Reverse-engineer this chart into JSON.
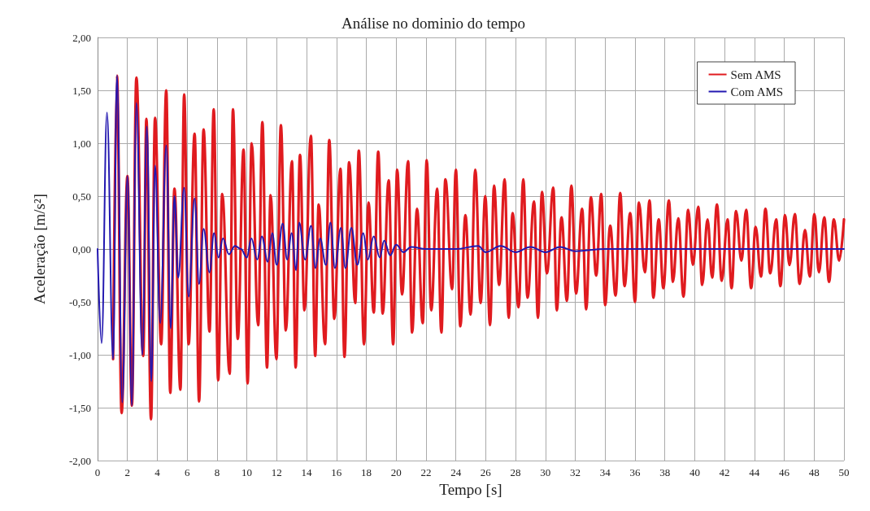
{
  "chart_data": {
    "type": "line",
    "title": "Análise no dominio do tempo",
    "xlabel": "Tempo [s]",
    "ylabel": "Aceleração [m/s²]",
    "xlim": [
      0,
      50
    ],
    "xticks": [
      0,
      2,
      4,
      6,
      8,
      10,
      12,
      14,
      16,
      18,
      20,
      22,
      24,
      26,
      28,
      30,
      32,
      34,
      36,
      38,
      40,
      42,
      44,
      46,
      48,
      50
    ],
    "ylim": [
      -2,
      2
    ],
    "yticks": [
      {
        "value": -2,
        "label": "-2,00"
      },
      {
        "value": -1.5,
        "label": "-1,50"
      },
      {
        "value": -1,
        "label": "-1,00"
      },
      {
        "value": -0.5,
        "label": "-0,50"
      },
      {
        "value": 0,
        "label": "0,00"
      },
      {
        "value": 0.5,
        "label": "0,50"
      },
      {
        "value": 1,
        "label": "1,00"
      },
      {
        "value": 1.5,
        "label": "1,50"
      },
      {
        "value": 2,
        "label": "2,00"
      }
    ],
    "grid": true,
    "legend": "top right",
    "marker": "none",
    "line_style": "solid",
    "series": [
      {
        "name": "Sem AMS",
        "color": "#e01b1f",
        "x": [
          1.04,
          1.3,
          1.61,
          2.0,
          2.3,
          2.6,
          3.06,
          3.27,
          3.58,
          3.85,
          4.26,
          4.6,
          4.87,
          5.15,
          5.55,
          5.8,
          6.1,
          6.5,
          6.8,
          7.1,
          7.5,
          7.78,
          8.08,
          8.35,
          8.85,
          9.07,
          9.39,
          9.78,
          10.05,
          10.32,
          10.76,
          11.04,
          11.35,
          11.59,
          11.98,
          12.28,
          12.61,
          13.02,
          13.27,
          13.56,
          13.86,
          14.29,
          14.58,
          14.81,
          15.24,
          15.52,
          15.86,
          16.27,
          16.54,
          16.85,
          17.26,
          17.5,
          17.85,
          18.15,
          18.5,
          18.8,
          19.1,
          19.5,
          19.8,
          20.07,
          20.4,
          20.8,
          21.07,
          21.4,
          21.78,
          22.05,
          22.35,
          22.75,
          23.03,
          23.3,
          23.75,
          24.0,
          24.3,
          24.64,
          24.99,
          25.3,
          25.66,
          25.97,
          26.29,
          26.56,
          26.9,
          27.27,
          27.54,
          27.8,
          28.2,
          28.52,
          28.8,
          29.24,
          29.5,
          29.77,
          30.1,
          30.53,
          30.76,
          31.08,
          31.44,
          31.74,
          32.05,
          32.46,
          32.73,
          33.05,
          33.4,
          33.74,
          34.0,
          34.34,
          34.7,
          35.01,
          35.3,
          35.68,
          36.0,
          36.26,
          36.66,
          36.98,
          37.23,
          37.59,
          37.9,
          38.27,
          38.54,
          38.9,
          39.25,
          39.56,
          39.88,
          40.24,
          40.5,
          40.86,
          41.17,
          41.49,
          41.81,
          42.2,
          42.47,
          42.77,
          43.13,
          43.45,
          43.78,
          44.08,
          44.44,
          44.74,
          45.06,
          45.46,
          45.74,
          46.05,
          46.35,
          46.71,
          47.03,
          47.39,
          47.71,
          48.02,
          48.32,
          48.68,
          49.0,
          49.32,
          49.68,
          50
        ],
        "values": [
          -1.04,
          1.64,
          -1.55,
          0.69,
          -1.48,
          1.62,
          -1.01,
          1.23,
          -1.61,
          1.24,
          -0.9,
          1.5,
          -1.36,
          0.57,
          -1.33,
          1.46,
          -0.9,
          1.09,
          -1.44,
          1.13,
          -0.78,
          1.32,
          -1.24,
          0.52,
          -1.18,
          1.32,
          -0.85,
          0.94,
          -1.27,
          1.0,
          -0.72,
          1.2,
          -1.12,
          0.51,
          -1.04,
          1.17,
          -0.77,
          0.83,
          -1.12,
          0.89,
          -0.58,
          1.07,
          -1.01,
          0.42,
          -0.9,
          1.03,
          -0.66,
          0.76,
          -1.02,
          0.82,
          -0.51,
          0.93,
          -0.9,
          0.44,
          -0.6,
          0.92,
          -0.61,
          0.65,
          -0.9,
          0.75,
          -0.43,
          0.83,
          -0.79,
          0.38,
          -0.7,
          0.84,
          -0.58,
          0.57,
          -0.79,
          0.66,
          -0.38,
          0.75,
          -0.73,
          0.32,
          -0.62,
          0.75,
          -0.51,
          0.5,
          -0.72,
          0.6,
          -0.34,
          0.66,
          -0.65,
          0.34,
          -0.55,
          0.66,
          -0.46,
          0.45,
          -0.65,
          0.54,
          -0.23,
          0.58,
          -0.58,
          0.3,
          -0.49,
          0.6,
          -0.42,
          0.38,
          -0.57,
          0.49,
          -0.25,
          0.52,
          -0.53,
          0.22,
          -0.44,
          0.53,
          -0.35,
          0.34,
          -0.5,
          0.44,
          -0.22,
          0.46,
          -0.46,
          0.28,
          -0.37,
          0.46,
          -0.31,
          0.29,
          -0.45,
          0.37,
          -0.15,
          0.4,
          -0.34,
          0.28,
          -0.27,
          0.42,
          -0.3,
          0.28,
          -0.37,
          0.36,
          -0.11,
          0.37,
          -0.37,
          0.21,
          -0.26,
          0.38,
          -0.23,
          0.28,
          -0.35,
          0.32,
          -0.15,
          0.33,
          -0.33,
          0.18,
          -0.26,
          0.33,
          -0.22,
          0.3,
          -0.31,
          0.28,
          -0.11,
          0.28
        ]
      },
      {
        "name": "Com AMS",
        "color": "#2318b0",
        "x": [
          0,
          0.27,
          0.63,
          1.04,
          1.3,
          1.65,
          2.0,
          2.3,
          2.6,
          3.0,
          3.3,
          3.6,
          3.85,
          4.2,
          4.6,
          4.9,
          5.15,
          5.4,
          5.8,
          6.1,
          6.5,
          6.8,
          7.1,
          7.5,
          7.8,
          8.1,
          8.4,
          8.8,
          9.2,
          9.6,
          10.0,
          10.3,
          10.7,
          11.0,
          11.4,
          11.7,
          12.0,
          12.4,
          12.7,
          13.0,
          13.3,
          13.5,
          13.9,
          14.3,
          14.6,
          14.9,
          15.3,
          15.6,
          15.9,
          16.3,
          16.6,
          17.0,
          17.4,
          17.8,
          18.1,
          18.5,
          18.9,
          19.2,
          19.6,
          20.0,
          20.5,
          21.0,
          22.0,
          24.0,
          25.5,
          26.0,
          27.0,
          28.0,
          29.0,
          30.0,
          31.0,
          32.0,
          34.0,
          50
        ],
        "values": [
          0,
          -0.89,
          1.29,
          -1.04,
          1.64,
          -1.45,
          0.69,
          -1.48,
          1.38,
          -1.0,
          1.16,
          -1.25,
          0.79,
          -0.7,
          0.98,
          -0.75,
          0.5,
          -0.27,
          0.58,
          -0.45,
          0.48,
          -0.33,
          0.19,
          -0.22,
          0.15,
          -0.08,
          0.1,
          -0.05,
          0.03,
          0,
          -0.08,
          0.1,
          -0.1,
          0.12,
          -0.12,
          0.15,
          -0.15,
          0.24,
          -0.1,
          0.15,
          -0.2,
          0.25,
          -0.1,
          0.22,
          -0.18,
          0.1,
          -0.15,
          0.25,
          -0.18,
          0.2,
          -0.18,
          0.2,
          -0.15,
          0.15,
          -0.1,
          0.12,
          -0.08,
          0.08,
          -0.06,
          0.04,
          -0.03,
          0.02,
          0,
          0,
          0.03,
          -0.03,
          0.03,
          -0.03,
          0.02,
          -0.03,
          0.02,
          -0.02,
          0,
          0
        ]
      }
    ]
  }
}
